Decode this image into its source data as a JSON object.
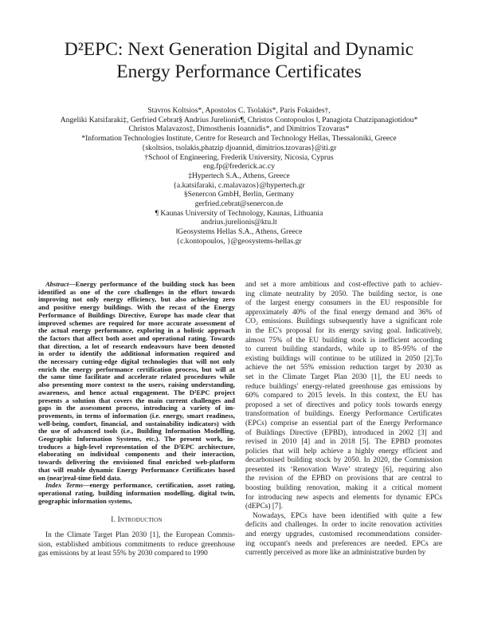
{
  "title": {
    "lines": [
      "D²EPC: Next Generation Digital and Dynamic",
      "Energy Performance Certificates"
    ]
  },
  "authors": {
    "lines": [
      "Stavros Koltsios*, Apostolos C. Tsolakis*, Paris Fokaides†,",
      "Angeliki Katsifaraki‡, Gerfried Cebrat§ Andrius Jurelionis¶, Christos Contopoulos ‖, Panagiota Chatzipanagiotidou*",
      "Christos Malavazos‡, Dimosthenis Ioannidis*, and Dimitrios Tzovaras*"
    ],
    "affiliations": [
      "*Information Technologies Institute, Centre for Research and Technology Hellas, Thessaloniki, Greece",
      "{skoltsios, tsolakis,phatzip djoannid, dimitrios.tzovaras}@iti.gr",
      "†School of Engineering, Frederik University, Nicosia, Cyprus",
      "eng.fp@frederick.ac.cy",
      "‡Hypertech S.A., Athens, Greece",
      "{a.katsifaraki, c.malavazos}@hypertech.gr",
      "§Senercon GmbH, Berlin, Germany",
      "gerfried.cebrat@senercon.de",
      "¶ Kaunas University of Technology, Kaunas, Lithuania",
      "andrius.jurelionis@ktu.lt",
      "‖Geosystems Hellas S.A., Athens, Greece",
      "{c.kontopoulos, }@geosystems-hellas.gr"
    ]
  },
  "abstract": {
    "label": "Abstract",
    "lines": [
      "—Energy performance of the building stock has been",
      "identified as one of the core challenges in the effort towards",
      "improving not only energy efficiency, but also achieving zero",
      "and positive energy buildings. With the recast of the Energy",
      "Performance of Buildings Directive, Europe has made clear that",
      "improved schemes are required for more accurate assessment of",
      "the actual energy performance, exploring in a holistic approach",
      "the factors that affect both asset and operational rating. Towards",
      "that direction, a lot of research endeavours have been denoted",
      "in order to identify the additional information required and",
      "the necessary cutting-edge digital technologies that will not only",
      "enrich the energy performance certification process, but will at",
      "the same time facilitate and accelerate related procedures while",
      "also presenting more context to the users, raising understanding,",
      "awareness, and hence actual engagement. The D²EPC project",
      "presents a solution that covers the main current challenges and",
      "gaps in the assessment process, introducing a variety of im-",
      "provements, in terms of information (i.e. energy, smart readiness,",
      "well-being, comfort, financial, and sustainability indicators) with",
      "the use of advanced tools (i.e., Building Information Modelling,",
      "Geographic Information Systems, etc.). The present work, in-",
      "troduces a high-level representation of the D²EPC architecture,",
      "elaborating on individual components and their interaction,",
      "towards delivering the envisioned final enriched web-platform",
      "that will enable dynamic Energy Performance Certificates based",
      "on (near)real-time field data."
    ]
  },
  "index_terms": {
    "label": "Index Terms",
    "lines": [
      "—energy performance, certification, asset rating,",
      "operational rating, building information modelling, digital twin,",
      "geographic information systems,"
    ]
  },
  "section": {
    "heading": "I. Introduction",
    "left_lines": [
      "In the Climate Target Plan 2030 [1], the European Commis-",
      "sion, established ambitious commitments to reduce greenhouse",
      "gas emissions by at least 55% by 2030 compared to 1990"
    ],
    "right_paragraphs": [
      [
        "and set a more ambitious and cost-effective path to achiev-",
        "ing climate neutrality by 2050. The building sector, is one",
        "of the largest energy consumers in the EU responsible for",
        "approximately 40% of the final energy demand and 36% of",
        "CO₂ emissions. Buildings subsequently have a significant role",
        "in the EC's proposal for its energy saving goal. Indicatively,",
        "almost 75% of the EU building stock is inefficient according",
        "to current building standards, while up to 85-95% of the",
        "existing buildings will continue to be utilized in 2050 [2].To",
        "achieve the net 55% emission reduction target by 2030 as",
        "set in the Climate Target Plan 2030 [1], the EU needs to",
        "reduce buildings' energy-related greenhouse gas emissions by",
        "60% compared to 2015 levels. In this context, the EU has",
        "proposed a set of directives and policy tools towards energy",
        "transformation of buildings. Energy Performance Certificates",
        "(EPCs) comprise an essential part of the Energy Performance",
        "of Buildings Directive (EPBD), introduced in 2002 [3] and",
        "revised in 2010 [4] and in 2018 [5]. The EPBD promotes",
        "policies that will help achieve a highly energy efficient and",
        "decarbonised building stock by 2050. In 2020, the Commission",
        "presented its ‘Renovation Wave’ strategy [6], requiring also",
        "the revision of the EPBD on provisions that are central to",
        "boosting building renovation, making it a critical moment",
        "for introducing new aspects and elements for dynamic EPCs",
        "(dEPCs) [7]."
      ],
      [
        "Nowadays, EPCs have been identified with quite a few",
        "deficits and challenges. In order to incite renovation activities",
        "and energy upgrades, customised recommendations consider-",
        "ing occupant's needs and preferences are needed. EPCs are",
        "currently perceived as more like an administrative burden by"
      ]
    ]
  }
}
